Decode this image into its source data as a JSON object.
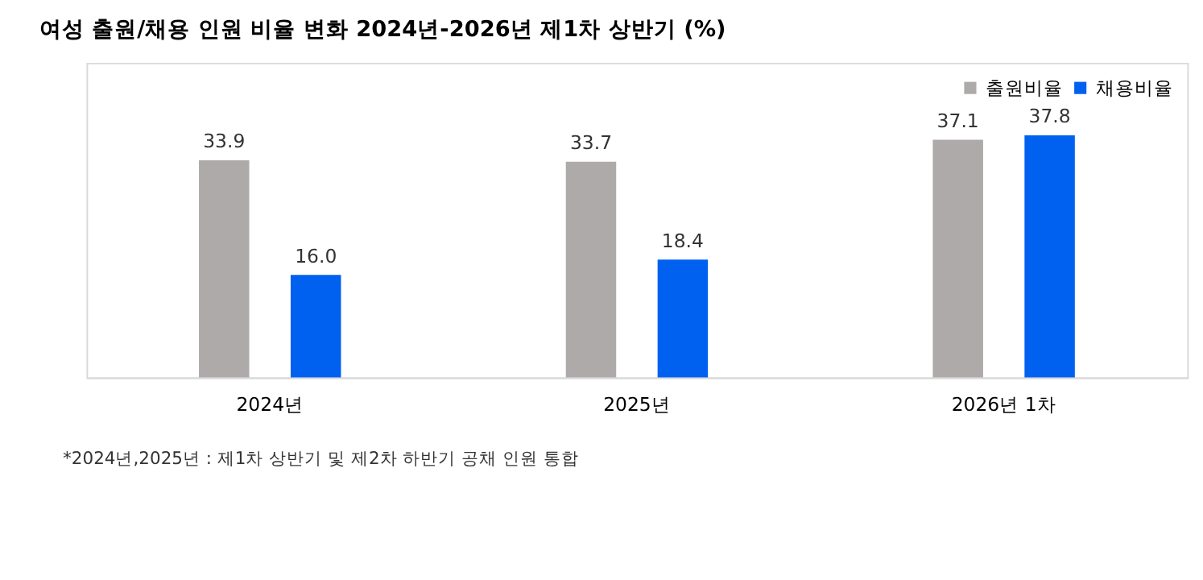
{
  "chart_data": {
    "type": "bar",
    "title": "여성 출원/채용 인원 비율 변화 2024년-2026년 제1차 상반기 (%)",
    "categories": [
      "2024년",
      "2025년",
      "2026년 1차"
    ],
    "series": [
      {
        "name": "출원비율",
        "color": "#aeaaaa",
        "values": [
          33.9,
          33.7,
          37.1
        ],
        "value_labels": [
          "33.9",
          "33.7",
          "37.1"
        ]
      },
      {
        "name": "채용비율",
        "color": "#0060f0",
        "values": [
          16.0,
          18.4,
          37.8
        ],
        "value_labels": [
          "16.0",
          "18.4",
          "37.8"
        ]
      }
    ],
    "legend": "top right",
    "grid": false,
    "annotations": [
      "*2024년,2025년 : 제1차 상반기 및 제2차 하반기 공채 인원 통합"
    ]
  }
}
